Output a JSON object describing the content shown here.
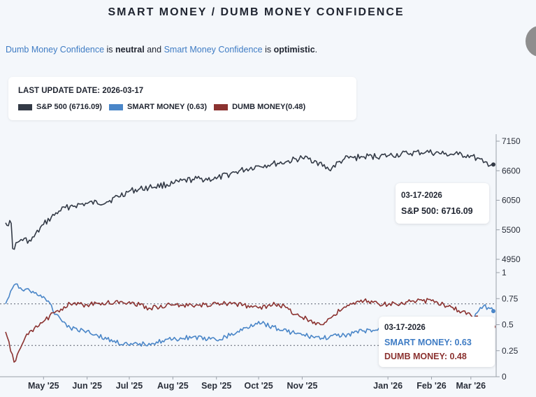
{
  "header": {
    "title": "SMART MONEY / DUMB MONEY CONFIDENCE",
    "dumb_label": "Dumb Money Confidence",
    "is1": "is",
    "dumb_state": "neutral",
    "and": "and",
    "smart_label": "Smart Money Confidence",
    "is2": "is",
    "smart_state": "optimistic",
    "end": "."
  },
  "legend": {
    "last_update": "LAST UPDATE DATE: 2026-03-17",
    "sp500": "S&P 500 (6716.09)",
    "smart": "SMART MONEY (0.63)",
    "dumb": "DUMB MONEY(0.48)"
  },
  "tooltip_sp": {
    "date": "03-17-2026",
    "value": "S&P 500: 6716.09"
  },
  "tooltip_conf": {
    "date": "03-17-2026",
    "smart": "SMART MONEY: 0.63",
    "dumb": "DUMB MONEY: 0.48"
  },
  "colors": {
    "sp500": "#333a46",
    "smart": "#4a86c8",
    "dumb": "#8b3230",
    "accent_text": "#3f7cc4"
  },
  "chart_data": {
    "type": "line",
    "title": "SMART MONEY / DUMB MONEY CONFIDENCE",
    "x_tick_labels": [
      "May '25",
      "Jun '25",
      "Jul '25",
      "Aug '25",
      "Sep '25",
      "Oct '25",
      "Nov '25",
      "Jan '26",
      "Feb '26",
      "Mar '26"
    ],
    "x_tick_dates": [
      "2025-05-01",
      "2025-06-01",
      "2025-07-01",
      "2025-08-01",
      "2025-09-01",
      "2025-10-01",
      "2025-11-01",
      "2026-01-01",
      "2026-02-01",
      "2026-03-01"
    ],
    "x_range": [
      "2025-04-04",
      "2026-03-18"
    ],
    "sp500": {
      "name": "S&P 500",
      "y_ticks": [
        "7150",
        "6600",
        "6050",
        "5500",
        "4950"
      ],
      "ylim": [
        4950,
        7150
      ],
      "dates": [
        "2025-04-04",
        "2025-04-08",
        "2025-04-09",
        "2025-04-15",
        "2025-04-22",
        "2025-05-01",
        "2025-05-12",
        "2025-05-20",
        "2025-06-01",
        "2025-06-15",
        "2025-07-01",
        "2025-07-15",
        "2025-08-01",
        "2025-08-15",
        "2025-09-01",
        "2025-09-15",
        "2025-10-01",
        "2025-10-10",
        "2025-10-20",
        "2025-11-01",
        "2025-11-10",
        "2025-11-20",
        "2025-12-01",
        "2025-12-15",
        "2026-01-01",
        "2026-01-15",
        "2026-01-28",
        "2026-02-10",
        "2026-02-20",
        "2026-03-01",
        "2026-03-10",
        "2026-03-17"
      ],
      "values": [
        5630,
        5620,
        5150,
        5320,
        5290,
        5600,
        5850,
        5940,
        5990,
        6020,
        6220,
        6290,
        6360,
        6440,
        6450,
        6580,
        6690,
        6720,
        6760,
        6840,
        6790,
        6620,
        6820,
        6860,
        6880,
        6920,
        6950,
        6910,
        6900,
        6880,
        6750,
        6716.09
      ]
    },
    "confidence": {
      "y_ticks": [
        "1",
        "0.75",
        "0.5",
        "0.25",
        "0"
      ],
      "ylim": [
        0,
        1
      ],
      "reference_lines": [
        0.7,
        0.3
      ],
      "dates": [
        "2025-04-04",
        "2025-04-10",
        "2025-04-18",
        "2025-05-01",
        "2025-05-10",
        "2025-05-20",
        "2025-06-01",
        "2025-06-15",
        "2025-07-01",
        "2025-07-15",
        "2025-08-01",
        "2025-08-15",
        "2025-09-01",
        "2025-09-15",
        "2025-10-01",
        "2025-10-15",
        "2025-11-01",
        "2025-11-15",
        "2025-12-01",
        "2025-12-15",
        "2026-01-01",
        "2026-01-15",
        "2026-02-01",
        "2026-02-15",
        "2026-03-01",
        "2026-03-10",
        "2026-03-17"
      ],
      "smart": [
        0.7,
        0.88,
        0.84,
        0.77,
        0.6,
        0.47,
        0.44,
        0.36,
        0.3,
        0.32,
        0.36,
        0.38,
        0.35,
        0.42,
        0.53,
        0.46,
        0.4,
        0.37,
        0.4,
        0.44,
        0.45,
        0.43,
        0.42,
        0.5,
        0.55,
        0.68,
        0.63
      ],
      "dumb": [
        0.43,
        0.14,
        0.38,
        0.53,
        0.63,
        0.7,
        0.69,
        0.71,
        0.72,
        0.66,
        0.69,
        0.68,
        0.7,
        0.7,
        0.66,
        0.7,
        0.57,
        0.5,
        0.67,
        0.73,
        0.69,
        0.72,
        0.73,
        0.67,
        0.59,
        0.55,
        0.48
      ]
    }
  }
}
